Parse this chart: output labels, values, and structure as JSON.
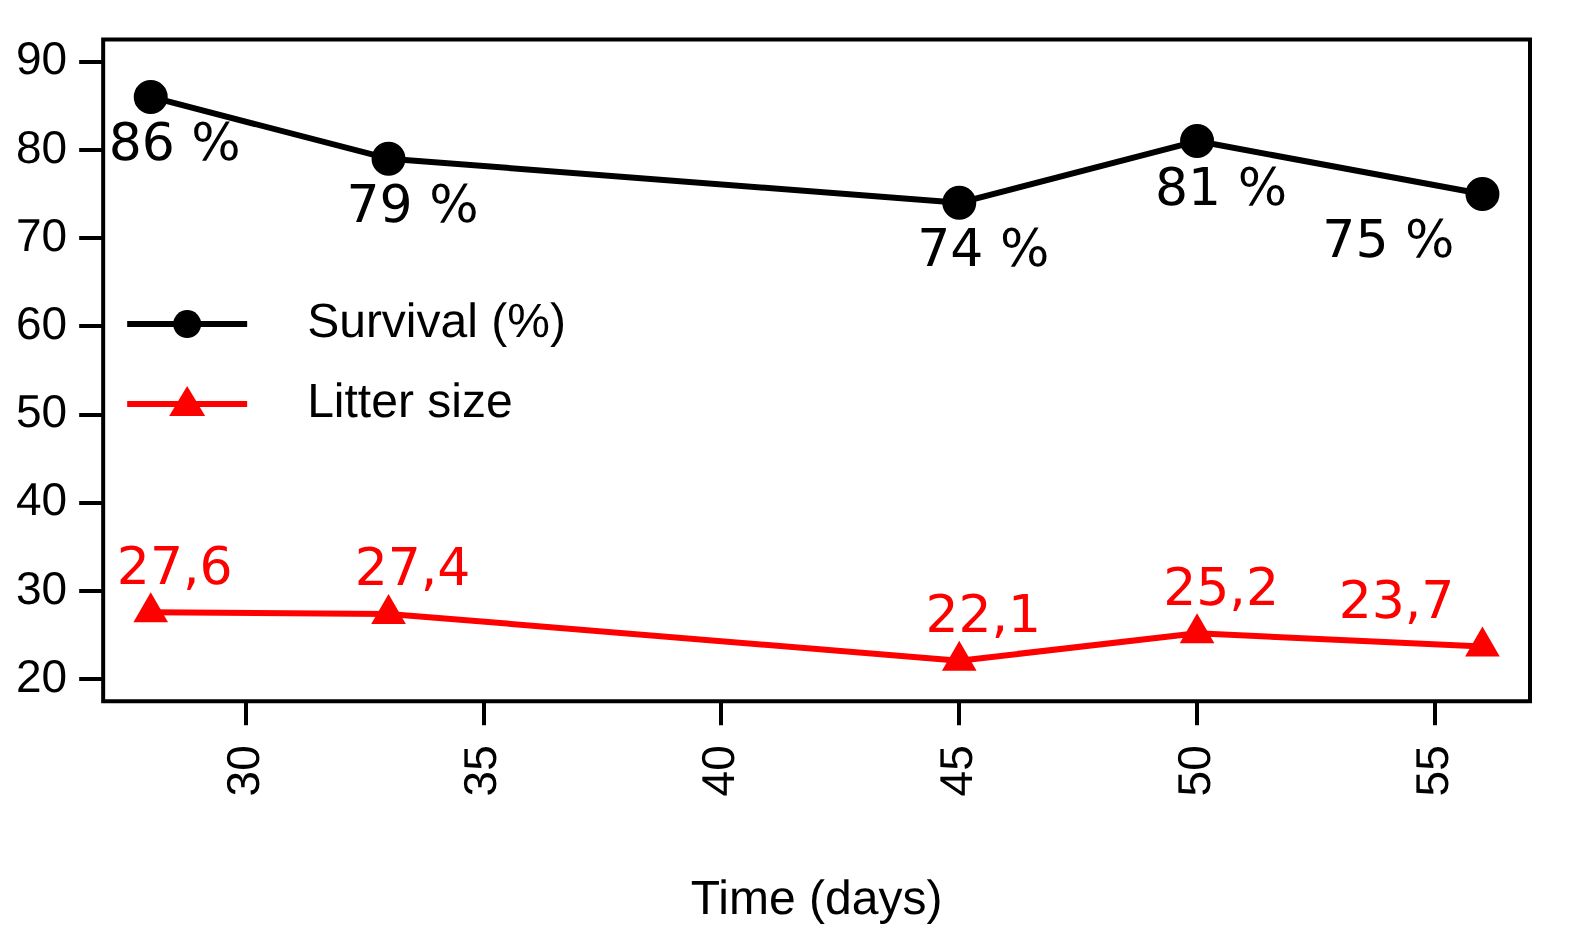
{
  "chart_data": {
    "type": "line",
    "xlabel": "Time (days)",
    "x": [
      28,
      33,
      45,
      50,
      56
    ],
    "series": [
      {
        "name": "Survival (%)",
        "color": "#000000",
        "marker": "circle",
        "values": [
          86,
          79,
          74,
          81,
          75
        ],
        "value_labels": [
          "86 %",
          "79 %",
          "74 %",
          "81 %",
          "75 %"
        ]
      },
      {
        "name": "Litter size",
        "color": "#ff0000",
        "marker": "triangle",
        "values": [
          27.6,
          27.4,
          22.1,
          25.2,
          23.7
        ],
        "value_labels": [
          "27,6",
          "27,4",
          "22,1",
          "25,2",
          "23,7"
        ]
      }
    ],
    "xlim": [
      27,
      57
    ],
    "xticks": [
      30,
      35,
      40,
      45,
      50,
      55
    ],
    "ylim": [
      17.5,
      92.5
    ],
    "yticks": [
      20,
      30,
      40,
      50,
      60,
      70,
      80,
      90
    ],
    "grid": false,
    "legend": "left",
    "line_style": "solid"
  }
}
